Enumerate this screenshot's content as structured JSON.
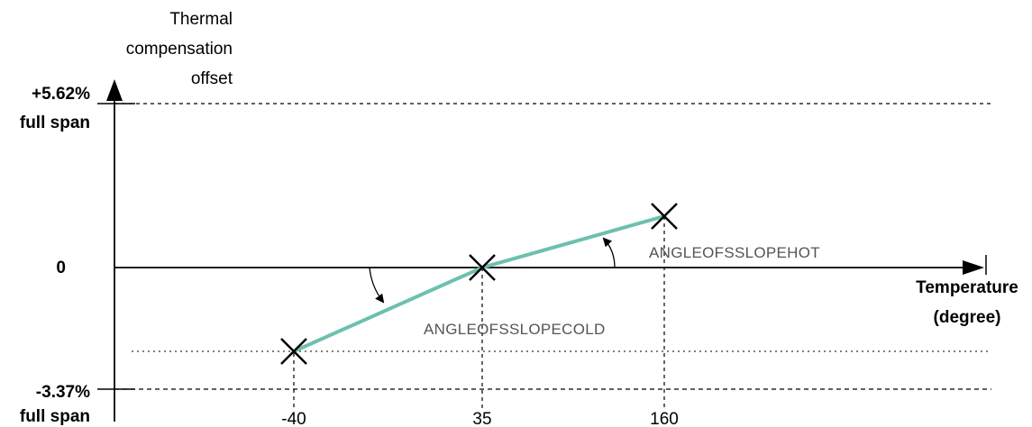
{
  "y_axis": {
    "title_lines": [
      "Thermal",
      "compensation",
      "offset"
    ],
    "top_label": [
      "+5.62%",
      "full span"
    ],
    "zero_label": "0",
    "bottom_label": [
      "-3.37%",
      "full span"
    ]
  },
  "x_axis": {
    "title_lines": [
      "Temperature",
      "(degree)"
    ],
    "ticks": [
      "-40",
      "35",
      "160"
    ]
  },
  "annotations": {
    "cold_slope": "ANGLEOFSSLOPECOLD",
    "hot_slope": "ANGLEOFSSLOPEHOT"
  },
  "colors": {
    "line": "#6cc0ae",
    "axis": "#000000",
    "annotation_text": "#555555"
  },
  "points": [
    {
      "temperature": -40,
      "marker": "cross"
    },
    {
      "temperature": 35,
      "marker": "cross"
    },
    {
      "temperature": 160,
      "marker": "cross"
    }
  ]
}
